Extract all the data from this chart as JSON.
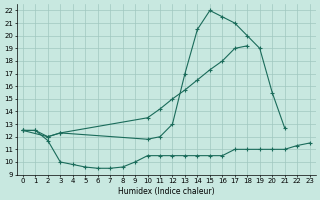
{
  "bg_color": "#c8e8e0",
  "grid_color": "#a0c8c0",
  "line_color": "#1a6b5a",
  "xlabel": "Humidex (Indice chaleur)",
  "xlim": [
    -0.5,
    23.5
  ],
  "ylim": [
    9,
    22.5
  ],
  "yticks": [
    9,
    10,
    11,
    12,
    13,
    14,
    15,
    16,
    17,
    18,
    19,
    20,
    21,
    22
  ],
  "xticks": [
    0,
    1,
    2,
    3,
    4,
    5,
    6,
    7,
    8,
    9,
    10,
    11,
    12,
    13,
    14,
    15,
    16,
    17,
    18,
    19,
    20,
    21,
    22,
    23
  ],
  "curve1_x": [
    0,
    1,
    2,
    3,
    10,
    11,
    12,
    13,
    14,
    15,
    16,
    17,
    18,
    19,
    20,
    21
  ],
  "curve1_y": [
    12.5,
    12.5,
    12.0,
    12.3,
    11.8,
    12.0,
    13.0,
    17.0,
    20.5,
    22.0,
    21.5,
    21.0,
    20.0,
    19.0,
    15.5,
    12.7
  ],
  "curve2_x": [
    0,
    2,
    3,
    10,
    11,
    12,
    13,
    14,
    15,
    16,
    17,
    18
  ],
  "curve2_y": [
    12.5,
    12.0,
    12.3,
    13.5,
    14.2,
    15.0,
    15.7,
    16.5,
    17.3,
    18.0,
    19.0,
    19.2
  ],
  "curve3_x": [
    0,
    1,
    2,
    3,
    4,
    5,
    6,
    7,
    8,
    9,
    10,
    11,
    12,
    13,
    14,
    15,
    16,
    17,
    18,
    19,
    20,
    21,
    22,
    23
  ],
  "curve3_y": [
    12.5,
    12.5,
    11.7,
    10.0,
    9.8,
    9.6,
    9.5,
    9.5,
    9.6,
    10.0,
    10.5,
    10.5,
    10.5,
    10.5,
    10.5,
    10.5,
    10.5,
    11.0,
    11.0,
    11.0,
    11.0,
    11.0,
    11.3,
    11.5
  ]
}
